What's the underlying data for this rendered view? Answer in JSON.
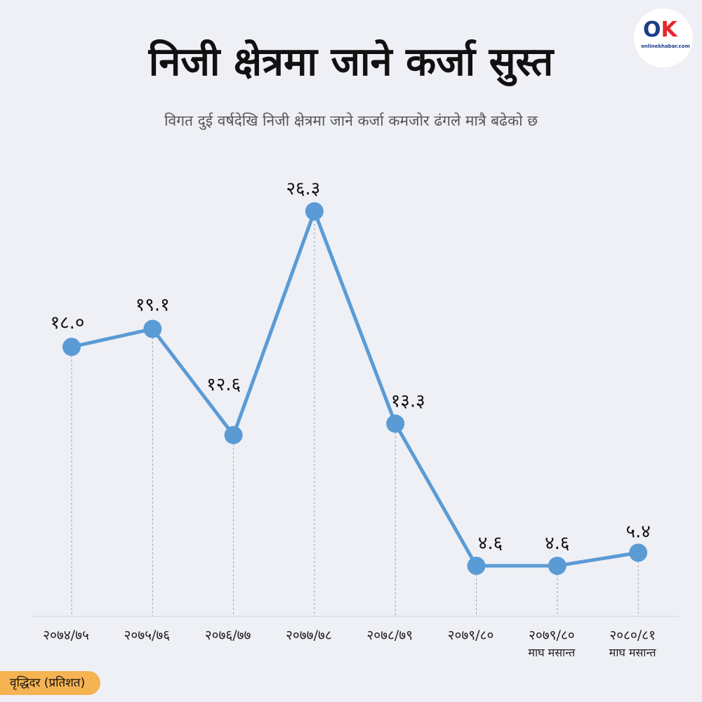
{
  "title": "निजी क्षेत्रमा जाने कर्जा सुस्त",
  "subtitle": "विगत दुई वर्षदेखि निजी क्षेत्रमा जाने कर्जा कमजोर ढंगले मात्रै बढेको छ",
  "logo": {
    "mark_o": "O",
    "mark_k": "K",
    "text": "onlinekhabar.com"
  },
  "chart_data": {
    "type": "line",
    "title": "निजी क्षेत्रमा जाने कर्जा सुस्त",
    "ylabel": "वृद्धिदर (प्रतिशत)",
    "xlabel": "",
    "categories": [
      "२०७४/७५",
      "२०७५/७६",
      "२०७६/७७",
      "२०७७/७८",
      "२०७८/७९",
      "२०७९/८०",
      "२०७९/८०",
      "२०८०/८१"
    ],
    "category_notes": [
      "",
      "",
      "",
      "",
      "",
      "",
      "माघ मसान्त",
      "माघ मसान्त"
    ],
    "values": [
      18.0,
      19.1,
      12.6,
      26.3,
      13.3,
      4.6,
      4.6,
      5.4
    ],
    "value_labels": [
      "१८.०",
      "१९.१",
      "१२.६",
      "२६.३",
      "१३.३",
      "४.६",
      "४.६",
      "५.४"
    ],
    "ylim": [
      0,
      27
    ],
    "grid": false,
    "colors": {
      "line": "#5b9bd5",
      "background": "#eef0f5",
      "badge": "#f6b352"
    }
  }
}
